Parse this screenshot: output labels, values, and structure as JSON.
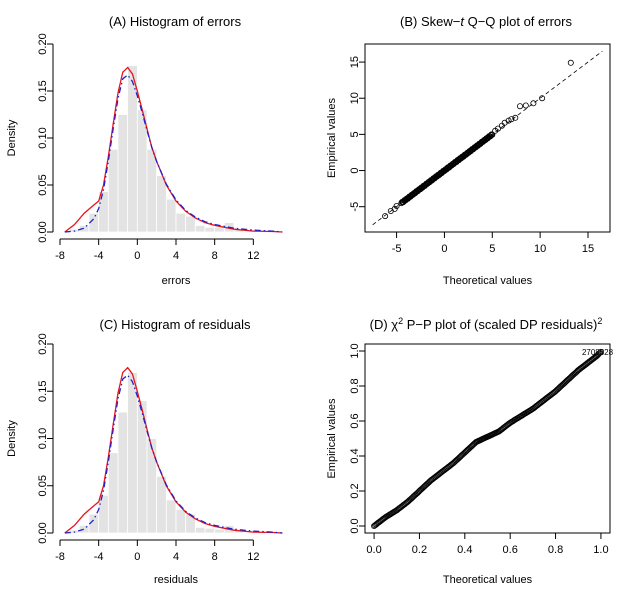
{
  "chart_data": [
    {
      "type": "bar",
      "panel": "A",
      "title": "(A) Histogram of errors",
      "xlabel": "errors",
      "ylabel": "Density",
      "xlim": [
        -8,
        16
      ],
      "ylim": [
        0,
        0.2
      ],
      "xticks": [
        -8,
        -4,
        0,
        4,
        8,
        12
      ],
      "yticks": [
        0.0,
        0.05,
        0.1,
        0.15,
        0.2
      ],
      "ytick_labels": [
        "0.00",
        "0.05",
        "0.10",
        "0.15",
        "0.20"
      ],
      "bin_width": 1,
      "bins": [
        {
          "x0": -7,
          "value": 0.003
        },
        {
          "x0": -6,
          "value": 0.007
        },
        {
          "x0": -5,
          "value": 0.02
        },
        {
          "x0": -4,
          "value": 0.043
        },
        {
          "x0": -3,
          "value": 0.088
        },
        {
          "x0": -2,
          "value": 0.125
        },
        {
          "x0": -1,
          "value": 0.177
        },
        {
          "x0": 0,
          "value": 0.13
        },
        {
          "x0": 1,
          "value": 0.088
        },
        {
          "x0": 2,
          "value": 0.06
        },
        {
          "x0": 3,
          "value": 0.035
        },
        {
          "x0": 4,
          "value": 0.02
        },
        {
          "x0": 5,
          "value": 0.017
        },
        {
          "x0": 6,
          "value": 0.007
        },
        {
          "x0": 7,
          "value": 0.005
        },
        {
          "x0": 8,
          "value": 0.005
        },
        {
          "x0": 9,
          "value": 0.01
        },
        {
          "x0": 10,
          "value": 0.003
        },
        {
          "x0": 11,
          "value": 0.001
        }
      ],
      "series": [
        {
          "style": "solid",
          "color": "#e8141b",
          "x": [
            -7.5,
            -6.5,
            -5.5,
            -4.7,
            -4,
            -3.5,
            -3,
            -2.5,
            -2,
            -1.5,
            -1,
            -0.5,
            0,
            0.5,
            1,
            1.5,
            2,
            3,
            4,
            5,
            6,
            7,
            8,
            10,
            12,
            14,
            15
          ],
          "y": [
            0.0,
            0.008,
            0.02,
            0.027,
            0.033,
            0.05,
            0.08,
            0.115,
            0.148,
            0.17,
            0.175,
            0.168,
            0.15,
            0.13,
            0.11,
            0.09,
            0.075,
            0.05,
            0.033,
            0.022,
            0.015,
            0.01,
            0.007,
            0.003,
            0.001,
            0.0005,
            0.0
          ]
        },
        {
          "style": "dashdot",
          "color": "#2222cc",
          "x": [
            -7.5,
            -6.5,
            -5.5,
            -4.5,
            -4,
            -3.5,
            -3,
            -2.5,
            -2,
            -1.5,
            -1,
            -0.5,
            0,
            0.5,
            1,
            1.5,
            2,
            3,
            4,
            5,
            6,
            7,
            8,
            10,
            12,
            14,
            15
          ],
          "y": [
            0.0,
            0.001,
            0.004,
            0.014,
            0.025,
            0.045,
            0.075,
            0.11,
            0.142,
            0.163,
            0.167,
            0.16,
            0.145,
            0.127,
            0.108,
            0.09,
            0.075,
            0.051,
            0.034,
            0.023,
            0.016,
            0.011,
            0.008,
            0.004,
            0.002,
            0.001,
            0.0
          ]
        }
      ]
    },
    {
      "type": "scatter",
      "panel": "B",
      "title_pre": "(B) Skew−",
      "title_italic": "t",
      "title_post": " Q−Q plot of errors",
      "xlabel": "Theoretical values",
      "ylabel": "Empirical values",
      "xlim": [
        -8.3,
        17.3
      ],
      "ylim": [
        -8.5,
        17.5
      ],
      "xticks": [
        -5,
        0,
        5,
        10,
        15
      ],
      "yticks": [
        -5,
        0,
        5,
        10,
        15
      ],
      "reference_line": {
        "slope": 1,
        "intercept": 0,
        "style": "dashed"
      },
      "dense_segment": {
        "from": -4.5,
        "to": 5,
        "count": 140
      },
      "points": [
        {
          "x": -6.2,
          "y": -6.3
        },
        {
          "x": -5.6,
          "y": -5.6
        },
        {
          "x": -5.2,
          "y": -5.3
        },
        {
          "x": -5.0,
          "y": -4.9
        },
        {
          "x": 5.3,
          "y": 5.5
        },
        {
          "x": 5.6,
          "y": 5.8
        },
        {
          "x": 6.0,
          "y": 6.2
        },
        {
          "x": 6.3,
          "y": 6.6
        },
        {
          "x": 6.7,
          "y": 6.9
        },
        {
          "x": 7.0,
          "y": 7.1
        },
        {
          "x": 7.4,
          "y": 7.3
        },
        {
          "x": 7.9,
          "y": 8.9
        },
        {
          "x": 8.5,
          "y": 9.0
        },
        {
          "x": 9.3,
          "y": 9.3
        },
        {
          "x": 10.2,
          "y": 10.0
        },
        {
          "x": 13.2,
          "y": 14.9
        }
      ]
    },
    {
      "type": "bar",
      "panel": "C",
      "title": "(C) Histogram of residuals",
      "xlabel": "residuals",
      "ylabel": "Density",
      "xlim": [
        -8,
        16
      ],
      "ylim": [
        0,
        0.2
      ],
      "xticks": [
        -8,
        -4,
        0,
        4,
        8,
        12
      ],
      "yticks": [
        0.0,
        0.05,
        0.1,
        0.15,
        0.2
      ],
      "ytick_labels": [
        "0.00",
        "0.05",
        "0.10",
        "0.15",
        "0.20"
      ],
      "bin_width": 1,
      "bins": [
        {
          "x0": -7,
          "value": 0.003
        },
        {
          "x0": -6,
          "value": 0.008
        },
        {
          "x0": -5,
          "value": 0.02
        },
        {
          "x0": -4,
          "value": 0.04
        },
        {
          "x0": -3,
          "value": 0.085
        },
        {
          "x0": -2,
          "value": 0.128
        },
        {
          "x0": -1,
          "value": 0.17
        },
        {
          "x0": 0,
          "value": 0.14
        },
        {
          "x0": 1,
          "value": 0.1
        },
        {
          "x0": 2,
          "value": 0.06
        },
        {
          "x0": 3,
          "value": 0.035
        },
        {
          "x0": 4,
          "value": 0.025
        },
        {
          "x0": 5,
          "value": 0.02
        },
        {
          "x0": 6,
          "value": 0.006
        },
        {
          "x0": 7,
          "value": 0.005
        },
        {
          "x0": 8,
          "value": 0.004
        },
        {
          "x0": 9,
          "value": 0.008
        },
        {
          "x0": 10,
          "value": 0.003
        },
        {
          "x0": 11,
          "value": 0.001
        }
      ],
      "series": [
        {
          "style": "solid",
          "color": "#e8141b",
          "x": [
            -7.5,
            -6.5,
            -5.5,
            -4.7,
            -4,
            -3.5,
            -3,
            -2.5,
            -2,
            -1.5,
            -1,
            -0.5,
            0,
            0.5,
            1,
            1.5,
            2,
            3,
            4,
            5,
            6,
            7,
            8,
            10,
            12,
            14,
            15
          ],
          "y": [
            0.0,
            0.008,
            0.02,
            0.027,
            0.033,
            0.05,
            0.08,
            0.115,
            0.148,
            0.17,
            0.175,
            0.168,
            0.15,
            0.13,
            0.11,
            0.09,
            0.075,
            0.05,
            0.033,
            0.022,
            0.015,
            0.01,
            0.007,
            0.003,
            0.001,
            0.0005,
            0.0
          ]
        },
        {
          "style": "dashdot",
          "color": "#2222cc",
          "x": [
            -7.5,
            -6.5,
            -5.5,
            -4.5,
            -4,
            -3.5,
            -3,
            -2.5,
            -2,
            -1.5,
            -1,
            -0.5,
            0,
            0.5,
            1,
            1.5,
            2,
            3,
            4,
            5,
            6,
            7,
            8,
            10,
            12,
            14,
            15
          ],
          "y": [
            0.0,
            0.001,
            0.004,
            0.014,
            0.025,
            0.045,
            0.075,
            0.11,
            0.142,
            0.163,
            0.167,
            0.16,
            0.145,
            0.127,
            0.108,
            0.09,
            0.075,
            0.051,
            0.034,
            0.023,
            0.016,
            0.011,
            0.008,
            0.004,
            0.002,
            0.001,
            0.0
          ]
        }
      ]
    },
    {
      "type": "scatter",
      "panel": "D",
      "title_pre": "(D) χ",
      "title_sup": "2",
      "title_post": " P−P plot of (scaled DP residuals)",
      "title_sup2": "2",
      "xlabel": "Theoretical values",
      "ylabel": "Empirical values",
      "xlim": [
        -0.04,
        1.04
      ],
      "ylim": [
        -0.04,
        1.04
      ],
      "xticks": [
        0.0,
        0.2,
        0.4,
        0.6,
        0.8,
        1.0
      ],
      "xtick_labels": [
        "0.0",
        "0.2",
        "0.4",
        "0.6",
        "0.8",
        "1.0"
      ],
      "yticks": [
        0.0,
        0.2,
        0.4,
        0.6,
        0.8,
        1.0
      ],
      "ytick_labels": [
        "0.0",
        "0.2",
        "0.4",
        "0.6",
        "0.8",
        "1.0"
      ],
      "curve": {
        "x": [
          0.0,
          0.02,
          0.05,
          0.1,
          0.15,
          0.2,
          0.25,
          0.3,
          0.35,
          0.4,
          0.45,
          0.5,
          0.55,
          0.6,
          0.65,
          0.7,
          0.75,
          0.8,
          0.85,
          0.9,
          0.95,
          0.98,
          1.0
        ],
        "y": [
          0.0,
          0.02,
          0.05,
          0.09,
          0.14,
          0.2,
          0.26,
          0.31,
          0.36,
          0.42,
          0.48,
          0.51,
          0.54,
          0.59,
          0.63,
          0.67,
          0.72,
          0.77,
          0.83,
          0.89,
          0.94,
          0.97,
          0.995
        ],
        "count": 230
      },
      "annotation": {
        "text": "2708828",
        "x": 0.985,
        "y": 0.995
      }
    }
  ]
}
